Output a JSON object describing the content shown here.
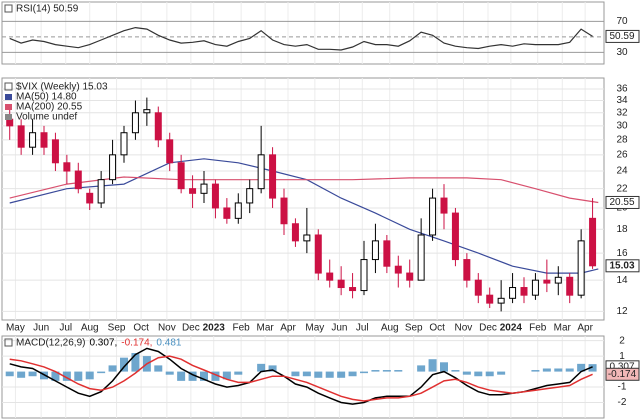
{
  "chart_data": [
    {
      "type": "line",
      "title": "RSI(14) 50.59",
      "color": "#333333",
      "x": [
        0,
        2,
        4,
        6,
        8,
        10,
        12,
        14,
        16,
        18,
        20,
        22,
        24,
        26,
        28,
        30,
        32,
        34,
        36,
        38,
        40,
        42,
        44,
        46,
        48,
        50,
        52,
        54,
        56,
        58,
        60,
        62,
        64,
        66,
        68,
        70,
        72,
        74,
        76,
        78,
        80,
        82,
        84,
        86,
        88,
        90,
        92,
        94,
        96,
        98,
        100,
        102
      ],
      "values": [
        48,
        42,
        46,
        44,
        40,
        38,
        36,
        40,
        46,
        52,
        58,
        62,
        60,
        52,
        46,
        42,
        43,
        45,
        40,
        38,
        44,
        48,
        58,
        46,
        40,
        38,
        40,
        34,
        34,
        33,
        37,
        44,
        40,
        40,
        38,
        45,
        56,
        52,
        42,
        38,
        36,
        35,
        38,
        40,
        38,
        41,
        40,
        40,
        40,
        43,
        60,
        50.59
      ],
      "ylim": [
        15,
        95
      ],
      "yticks": [
        30,
        70
      ],
      "reference_lines": [
        50
      ],
      "tags": [
        {
          "value": 50.59,
          "label": "50.59",
          "color": "#ffffff"
        }
      ]
    },
    {
      "type": "candlestick",
      "title": "$VIX (Weekly) 15.03",
      "log_scale": true,
      "grid": true,
      "x": [
        0,
        2,
        4,
        6,
        8,
        10,
        12,
        14,
        16,
        18,
        20,
        22,
        24,
        26,
        28,
        30,
        32,
        34,
        36,
        38,
        40,
        42,
        44,
        46,
        48,
        50,
        52,
        54,
        56,
        58,
        60,
        62,
        64,
        66,
        68,
        70,
        72,
        74,
        76,
        78,
        80,
        82,
        84,
        86,
        88,
        90,
        92,
        94,
        96,
        98,
        100,
        102
      ],
      "open": [
        31,
        30,
        27,
        29,
        28,
        25,
        24,
        21.5,
        20.5,
        23,
        26,
        29,
        32,
        32,
        28,
        25,
        22,
        21.5,
        22.5,
        20,
        19,
        20.5,
        22,
        26,
        21,
        18.5,
        17,
        17.5,
        14.5,
        14,
        13.5,
        13.3,
        15.5,
        17,
        15,
        14.5,
        14,
        17.5,
        21,
        19.5,
        15.5,
        14,
        13,
        12.5,
        12.8,
        13.5,
        13,
        14,
        13.8,
        14.2,
        13,
        19
      ],
      "high": [
        33,
        31,
        31,
        30,
        29,
        26,
        25,
        22,
        24,
        28,
        30,
        34,
        34.5,
        33,
        29,
        26,
        23.5,
        24,
        23,
        21,
        21.5,
        23,
        30,
        27,
        22,
        19,
        20,
        18,
        15.5,
        15,
        14.5,
        17,
        18.5,
        17.5,
        15.8,
        15.5,
        19,
        22,
        22.5,
        20,
        16,
        14.5,
        13.5,
        14,
        14.5,
        14.2,
        14.5,
        15.5,
        15,
        14.5,
        18,
        21
      ],
      "low": [
        28,
        26,
        26,
        26,
        24,
        22.5,
        21.5,
        19.8,
        20,
        22.5,
        25,
        28,
        30,
        27,
        24,
        21.5,
        20,
        20.5,
        19,
        18.5,
        18.5,
        19.5,
        21.5,
        20,
        17.5,
        16.5,
        16,
        14,
        13.5,
        13,
        12.8,
        13,
        14.5,
        14.5,
        13.5,
        13.5,
        14,
        17,
        18,
        15,
        13.5,
        12.5,
        12.2,
        12,
        12.5,
        12.5,
        12.7,
        13.2,
        13,
        12.5,
        12.8,
        14.8
      ],
      "close": [
        30,
        27,
        29,
        27,
        25,
        24,
        22,
        20.5,
        23,
        26,
        29,
        32,
        32.5,
        28,
        25,
        22,
        21.5,
        22.5,
        20,
        19,
        20.5,
        22,
        26,
        21,
        18.5,
        17,
        17.5,
        14.5,
        14,
        13.5,
        13.3,
        15.5,
        17,
        15,
        14.5,
        14,
        17.5,
        21,
        19.5,
        15.5,
        14,
        13,
        12.5,
        12.8,
        13.5,
        13,
        14,
        13.8,
        14.2,
        13,
        17,
        15.03
      ],
      "up_color": "#000000",
      "down_color": "#cc1144",
      "series": [
        {
          "name": "MA(50) 14.80",
          "color": "#3a4a9a",
          "x": [
            0,
            10,
            20,
            28,
            34,
            40,
            46,
            52,
            58,
            64,
            70,
            76,
            82,
            88,
            94,
            100,
            103
          ],
          "values": [
            20.5,
            22,
            22.5,
            25,
            25.5,
            25,
            24,
            23,
            21,
            19.5,
            18,
            17,
            16,
            15,
            14.5,
            14.5,
            14.8
          ]
        },
        {
          "name": "MA(200) 20.55",
          "color": "#d8506e",
          "x": [
            0,
            10,
            20,
            30,
            40,
            50,
            60,
            70,
            80,
            86,
            92,
            98,
            103
          ],
          "values": [
            21,
            22.5,
            23.3,
            23,
            23,
            23,
            23,
            23.2,
            23.2,
            23,
            22,
            21,
            20.55
          ]
        }
      ],
      "note_label": "Volume undef",
      "ylim": [
        11.5,
        38
      ],
      "yticks": [
        12,
        14,
        16,
        18,
        20,
        22,
        24,
        26,
        28,
        30,
        32,
        34,
        36
      ],
      "tags": [
        {
          "value": 20.55,
          "label": "20.55",
          "color": "#ffffff"
        },
        {
          "value": 15.03,
          "label": "15.03",
          "color": "#ffffff"
        }
      ],
      "xlim": [
        -1,
        104
      ],
      "xticks": [
        {
          "value": 1,
          "label": "May"
        },
        {
          "value": 5.5,
          "label": "Jun"
        },
        {
          "value": 9.8,
          "label": "Jul"
        },
        {
          "value": 14,
          "label": "Aug"
        },
        {
          "value": 18.7,
          "label": "Sep"
        },
        {
          "value": 23,
          "label": "Oct"
        },
        {
          "value": 27.5,
          "label": "Nov"
        },
        {
          "value": 31.7,
          "label": "Dec"
        },
        {
          "value": 35.7,
          "label": "2023"
        },
        {
          "value": 40.5,
          "label": "Feb"
        },
        {
          "value": 44.7,
          "label": "Mar"
        },
        {
          "value": 48.7,
          "label": "Apr"
        },
        {
          "value": 53.4,
          "label": "May"
        },
        {
          "value": 57.7,
          "label": "Jun"
        },
        {
          "value": 61.7,
          "label": "Jul"
        },
        {
          "value": 66.5,
          "label": "Aug"
        },
        {
          "value": 70.7,
          "label": "Sep"
        },
        {
          "value": 74.8,
          "label": "Oct"
        },
        {
          "value": 79.4,
          "label": "Nov"
        },
        {
          "value": 83.7,
          "label": "Dec"
        },
        {
          "value": 87.7,
          "label": "2024"
        },
        {
          "value": 92.4,
          "label": "Feb"
        },
        {
          "value": 96.7,
          "label": "Mar"
        },
        {
          "value": 100.7,
          "label": "Apr"
        }
      ]
    },
    {
      "type": "macd",
      "title": "MACD(12,26,9)",
      "x": [
        0,
        2,
        4,
        6,
        8,
        10,
        12,
        14,
        16,
        18,
        20,
        22,
        24,
        26,
        28,
        30,
        32,
        34,
        36,
        38,
        40,
        42,
        44,
        46,
        48,
        50,
        52,
        54,
        56,
        58,
        60,
        62,
        64,
        66,
        68,
        70,
        72,
        74,
        76,
        78,
        80,
        82,
        84,
        86,
        88,
        90,
        92,
        94,
        96,
        98,
        100,
        102
      ],
      "series": [
        {
          "name": "0.307,",
          "color": "#000000",
          "kind": "line",
          "values": [
            0.5,
            0.3,
            0.2,
            -0.2,
            -0.6,
            -1.0,
            -1.4,
            -1.6,
            -1.3,
            -0.6,
            0.3,
            1.1,
            1.5,
            1.3,
            0.8,
            0.2,
            -0.2,
            -0.5,
            -0.8,
            -1.0,
            -0.9,
            -0.7,
            0.0,
            0.1,
            -0.3,
            -0.8,
            -1.0,
            -1.4,
            -1.7,
            -2.0,
            -2.1,
            -2.0,
            -1.7,
            -1.6,
            -1.6,
            -1.6,
            -1.0,
            -0.2,
            0.0,
            -0.4,
            -0.9,
            -1.3,
            -1.5,
            -1.5,
            -1.4,
            -1.3,
            -1.1,
            -0.9,
            -0.8,
            -0.7,
            0.0,
            0.307
          ]
        },
        {
          "name": "-0.174,",
          "color": "#e03030",
          "kind": "line",
          "values": [
            0.8,
            0.7,
            0.5,
            0.3,
            0.0,
            -0.4,
            -0.8,
            -1.1,
            -1.2,
            -1.0,
            -0.6,
            -0.1,
            0.5,
            0.9,
            1.0,
            0.8,
            0.4,
            0.1,
            -0.2,
            -0.5,
            -0.7,
            -0.7,
            -0.5,
            -0.3,
            -0.3,
            -0.5,
            -0.7,
            -1.0,
            -1.3,
            -1.6,
            -1.8,
            -1.9,
            -1.8,
            -1.7,
            -1.7,
            -1.6,
            -1.4,
            -1.0,
            -0.6,
            -0.5,
            -0.7,
            -1.0,
            -1.2,
            -1.3,
            -1.4,
            -1.3,
            -1.2,
            -1.1,
            -1.0,
            -0.9,
            -0.5,
            -0.174
          ]
        },
        {
          "name": "0.481",
          "color": "#4a90c0",
          "kind": "bar",
          "values": [
            -0.3,
            -0.4,
            -0.3,
            -0.5,
            -0.6,
            -0.6,
            -0.6,
            -0.5,
            -0.1,
            0.4,
            0.9,
            1.2,
            1.0,
            0.4,
            -0.2,
            -0.6,
            -0.6,
            -0.6,
            -0.6,
            -0.5,
            -0.2,
            0.0,
            0.5,
            0.4,
            0.0,
            -0.3,
            -0.3,
            -0.4,
            -0.4,
            -0.4,
            -0.3,
            -0.1,
            0.1,
            0.1,
            0.1,
            0.0,
            0.4,
            0.8,
            0.6,
            0.1,
            -0.2,
            -0.3,
            -0.3,
            -0.2,
            0.0,
            0.0,
            0.1,
            0.2,
            0.2,
            0.2,
            0.5,
            0.481
          ]
        }
      ],
      "ylim": [
        -3,
        2.3
      ],
      "yticks": [
        -2,
        -1,
        1,
        2
      ],
      "tags": [
        {
          "value": 0.307,
          "label": "0.307",
          "color": "#ffffff"
        },
        {
          "value": -0.174,
          "label": "-0.174",
          "color": "#f2b8b8"
        }
      ]
    }
  ]
}
